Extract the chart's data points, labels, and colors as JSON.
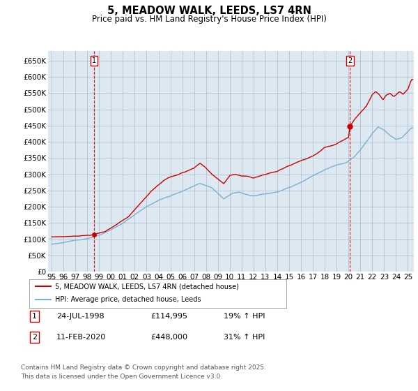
{
  "title": "5, MEADOW WALK, LEEDS, LS7 4RN",
  "subtitle": "Price paid vs. HM Land Registry's House Price Index (HPI)",
  "title_fontsize": 10.5,
  "subtitle_fontsize": 8.5,
  "background_color": "#ffffff",
  "grid_color": "#aabbcc",
  "plot_bg_color": "#dde8f0",
  "price_paid_color": "#cc0000",
  "hpi_color": "#7ab0d4",
  "purchase1_date": 1998.56,
  "purchase1_price": 114995,
  "purchase2_date": 2020.12,
  "purchase2_price": 448000,
  "vline_color": "#cc0000",
  "ylim": [
    0,
    680000
  ],
  "xlim": [
    1994.7,
    2025.5
  ],
  "yticks": [
    0,
    50000,
    100000,
    150000,
    200000,
    250000,
    300000,
    350000,
    400000,
    450000,
    500000,
    550000,
    600000,
    650000
  ],
  "ytick_labels": [
    "£0",
    "£50K",
    "£100K",
    "£150K",
    "£200K",
    "£250K",
    "£300K",
    "£350K",
    "£400K",
    "£450K",
    "£500K",
    "£550K",
    "£600K",
    "£650K"
  ],
  "xtick_values": [
    1995,
    1996,
    1997,
    1998,
    1999,
    2000,
    2001,
    2002,
    2003,
    2004,
    2005,
    2006,
    2007,
    2008,
    2009,
    2010,
    2011,
    2012,
    2013,
    2014,
    2015,
    2016,
    2017,
    2018,
    2019,
    2020,
    2021,
    2022,
    2023,
    2024,
    2025
  ],
  "xtick_labels": [
    "95",
    "96",
    "97",
    "98",
    "99",
    "00",
    "01",
    "02",
    "03",
    "04",
    "05",
    "06",
    "07",
    "08",
    "09",
    "10",
    "11",
    "12",
    "13",
    "14",
    "15",
    "16",
    "17",
    "18",
    "19",
    "20",
    "21",
    "22",
    "23",
    "24",
    "25"
  ],
  "legend_price_label": "5, MEADOW WALK, LEEDS, LS7 4RN (detached house)",
  "legend_hpi_label": "HPI: Average price, detached house, Leeds",
  "footer1": "Contains HM Land Registry data © Crown copyright and database right 2025.",
  "footer2": "This data is licensed under the Open Government Licence v3.0.",
  "table_row1": [
    "1",
    "24-JUL-1998",
    "£114,995",
    "19% ↑ HPI"
  ],
  "table_row2": [
    "2",
    "11-FEB-2020",
    "£448,000",
    "31% ↑ HPI"
  ]
}
